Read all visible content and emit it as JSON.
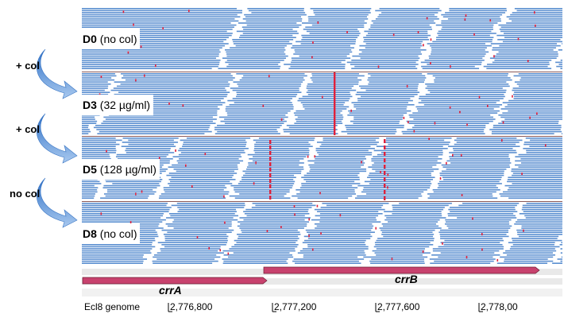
{
  "tracks": [
    {
      "id": "D0",
      "condition": "(no col)"
    },
    {
      "id": "D3",
      "condition": "(32 µg/ml)"
    },
    {
      "id": "D5",
      "condition": "(128 µg/ml)"
    },
    {
      "id": "D8",
      "condition": "(no col)"
    }
  ],
  "transitions": [
    "+ col",
    "+ col",
    "no col"
  ],
  "genes": [
    {
      "name": "crrA",
      "color": "#c8426e"
    },
    {
      "name": "crrB",
      "color": "#c8426e"
    }
  ],
  "genome_axis": {
    "label": "Ecl8 genome",
    "ticks": [
      "2,776,800",
      "2,777,200",
      "2,777,600",
      "2,778,00"
    ]
  },
  "colors": {
    "read": "#5b8fd0",
    "mismatch": "#e0203a",
    "arrow": "#4f8fd8"
  }
}
